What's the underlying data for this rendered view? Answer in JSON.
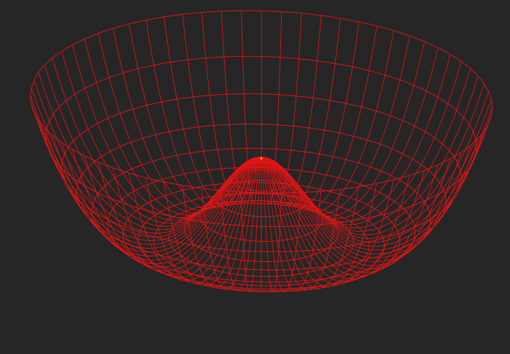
{
  "scene": {
    "description_visible_text": "",
    "background_color": "#262626",
    "wire_color": "#e01515",
    "highlight_color": "#e8b400",
    "surface": {
      "kind": "polar-wireframe",
      "radial_divisions": 15,
      "angular_divisions": 72,
      "shape": "double-well (Mexican-hat) potential"
    }
  }
}
